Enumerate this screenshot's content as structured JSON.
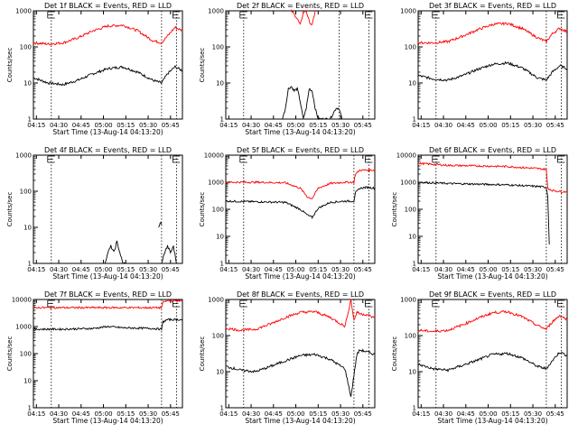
{
  "chart_data": [
    {
      "type": "line",
      "title": "Det 1f BLACK = Events, RED = LLD",
      "xlabel": "Start Time (13-Aug-14 04:13:20)",
      "ylabel": "Counts/sec",
      "ylog": true,
      "ylim": [
        1,
        1000
      ],
      "y_ticks": [
        "1",
        "10",
        "100",
        "1000"
      ],
      "x_ticks": [
        "04:15",
        "04:30",
        "04:45",
        "05:00",
        "05:15",
        "05:30",
        "05:45"
      ],
      "xlim_minutes": [
        0,
        100
      ],
      "markers_minutes": [
        12,
        86,
        96
      ],
      "series": [
        {
          "color": "#000000",
          "x": [
            0,
            10,
            20,
            30,
            40,
            50,
            60,
            70,
            80,
            86,
            90,
            95,
            100
          ],
          "values": [
            14,
            10,
            9,
            12,
            18,
            25,
            28,
            20,
            12,
            10,
            18,
            28,
            22
          ]
        },
        {
          "color": "#ff0000",
          "x": [
            0,
            10,
            20,
            30,
            40,
            50,
            60,
            70,
            80,
            86,
            90,
            95,
            100
          ],
          "values": [
            130,
            120,
            130,
            180,
            280,
            380,
            400,
            280,
            150,
            130,
            200,
            350,
            280
          ]
        }
      ]
    },
    {
      "type": "line",
      "title": "Det 2f BLACK = Events, RED = LLD",
      "xlabel": "Start Time (13-Aug-14 04:13:20)",
      "ylabel": "Counts/sec",
      "ylog": true,
      "ylim": [
        1,
        1000
      ],
      "y_ticks": [
        "1",
        "10",
        "100",
        "1000"
      ],
      "x_ticks": [
        "04:15",
        "04:30",
        "04:45",
        "05:00",
        "05:15",
        "05:30",
        "05:45"
      ],
      "xlim_minutes": [
        0,
        100
      ],
      "markers_minutes": [
        12,
        76,
        96
      ],
      "series": [
        {
          "color": "#000000",
          "x": [
            38,
            40,
            42,
            44,
            46,
            48,
            50,
            52,
            54,
            56,
            58,
            60,
            62,
            64,
            66,
            70,
            74,
            76,
            78
          ],
          "values": [
            1,
            2,
            7,
            8,
            6,
            7,
            3,
            1,
            2,
            7,
            6,
            2,
            1,
            1,
            1,
            1,
            2,
            2,
            1
          ]
        },
        {
          "color": "#ff0000",
          "x": [
            44,
            46,
            48,
            50,
            52,
            54,
            56,
            58,
            60
          ],
          "values": [
            1000,
            800,
            600,
            400,
            900,
            1000,
            500,
            400,
            1000
          ]
        }
      ]
    },
    {
      "type": "line",
      "title": "Det 3f BLACK = Events, RED = LLD",
      "xlabel": "",
      "ylabel": "",
      "ylog": true,
      "ylim": [
        1,
        1000
      ],
      "y_ticks": [
        "1",
        "10",
        "100",
        "1000"
      ],
      "x_ticks": [
        "04:15",
        "04:30",
        "04:45",
        "05:00",
        "05:15",
        "05:30",
        "05:45"
      ],
      "xlim_minutes": [
        0,
        100
      ],
      "markers_minutes": [
        12,
        86,
        96
      ],
      "series": [
        {
          "color": "#000000",
          "x": [
            0,
            10,
            20,
            30,
            40,
            50,
            60,
            70,
            80,
            86,
            90,
            95,
            100
          ],
          "values": [
            16,
            13,
            12,
            16,
            24,
            33,
            36,
            26,
            14,
            12,
            20,
            30,
            25
          ]
        },
        {
          "color": "#ff0000",
          "x": [
            0,
            10,
            20,
            30,
            40,
            50,
            60,
            70,
            80,
            86,
            90,
            95,
            100
          ],
          "values": [
            130,
            130,
            140,
            200,
            300,
            420,
            450,
            320,
            180,
            140,
            230,
            330,
            260
          ]
        }
      ]
    },
    {
      "type": "line",
      "title": "Det 4f BLACK = Events, RED = LLD",
      "xlabel": "Start Time (13-Aug-14 04:13:20)",
      "ylabel": "Counts/sec",
      "ylog": true,
      "ylim": [
        1,
        1000
      ],
      "y_ticks": [
        "1",
        "10",
        "100",
        "1000"
      ],
      "x_ticks": [
        "04:15",
        "04:30",
        "04:45",
        "05:00",
        "05:15",
        "05:30",
        "05:45"
      ],
      "xlim_minutes": [
        0,
        100
      ],
      "markers_minutes": [
        12,
        86,
        96
      ],
      "series": [
        {
          "color": "#000000",
          "x": [
            48,
            50,
            52,
            54,
            56,
            58,
            60,
            62
          ],
          "values": [
            1,
            2,
            3,
            2,
            4,
            2,
            1,
            1
          ]
        },
        {
          "color": "#000000",
          "x": [
            86,
            88,
            90,
            92,
            94,
            96
          ],
          "values": [
            1,
            2,
            3,
            2,
            3,
            1
          ]
        },
        {
          "color": "#000000",
          "x": [
            84,
            85,
            86
          ],
          "values": [
            10,
            14,
            12
          ]
        }
      ]
    },
    {
      "type": "line",
      "title": "Det 5f BLACK = Events, RED = LLD",
      "xlabel": "Start Time (13-Aug-14 04:13:20)",
      "ylabel": "Counts/sec",
      "ylog": true,
      "ylim": [
        1,
        10000
      ],
      "y_ticks": [
        "1",
        "10",
        "100",
        "1000",
        "10000"
      ],
      "x_ticks": [
        "04:15",
        "04:30",
        "04:45",
        "05:00",
        "05:15",
        "05:30",
        "05:45"
      ],
      "xlim_minutes": [
        0,
        100
      ],
      "markers_minutes": [
        12,
        86,
        96
      ],
      "series": [
        {
          "color": "#000000",
          "x": [
            0,
            20,
            40,
            50,
            55,
            58,
            62,
            70,
            80,
            86,
            87,
            90,
            95,
            100
          ],
          "values": [
            200,
            190,
            180,
            100,
            60,
            50,
            110,
            180,
            200,
            200,
            400,
            600,
            650,
            600
          ]
        },
        {
          "color": "#ff0000",
          "x": [
            0,
            20,
            40,
            50,
            55,
            58,
            62,
            70,
            80,
            86,
            87,
            90,
            95,
            100
          ],
          "values": [
            1000,
            1000,
            950,
            600,
            280,
            250,
            600,
            900,
            1000,
            1000,
            2000,
            2800,
            2800,
            2800
          ]
        }
      ]
    },
    {
      "type": "line",
      "title": "Det 6f BLACK = Events, RED = LLD",
      "xlabel": "Start Time (13-Aug-14 04:13:20)",
      "ylabel": "Counts/sec",
      "ylog": true,
      "ylim": [
        1,
        10000
      ],
      "y_ticks": [
        "1",
        "10",
        "100",
        "1000",
        "10000"
      ],
      "x_ticks": [
        "04:15",
        "04:30",
        "04:45",
        "05:00",
        "05:15",
        "05:30",
        "05:45"
      ],
      "xlim_minutes": [
        0,
        100
      ],
      "markers_minutes": [
        12,
        86,
        96
      ],
      "series": [
        {
          "color": "#000000",
          "x": [
            0,
            20,
            40,
            60,
            80,
            86,
            87,
            88
          ],
          "values": [
            1000,
            900,
            850,
            800,
            700,
            650,
            300,
            5
          ]
        },
        {
          "color": "#ff0000",
          "x": [
            0,
            20,
            40,
            60,
            80,
            86,
            87,
            90,
            95,
            100
          ],
          "values": [
            5000,
            4200,
            4000,
            3800,
            3200,
            3000,
            600,
            500,
            450,
            450
          ]
        }
      ]
    },
    {
      "type": "line",
      "title": "Det 7f BLACK = Events, RED = LLD",
      "xlabel": "Start Time (13-Aug-14 04:13:20)",
      "ylabel": "Counts/sec",
      "ylog": true,
      "ylim": [
        1,
        10000
      ],
      "y_ticks": [
        "1",
        "10",
        "100",
        "1000",
        "10000"
      ],
      "x_ticks": [
        "04:15",
        "04:30",
        "04:45",
        "05:00",
        "05:15",
        "05:30",
        "05:45"
      ],
      "xlim_minutes": [
        0,
        100
      ],
      "markers_minutes": [
        12,
        86,
        96
      ],
      "series": [
        {
          "color": "#000000",
          "x": [
            0,
            20,
            40,
            50,
            60,
            80,
            86,
            87,
            90,
            100
          ],
          "values": [
            800,
            800,
            850,
            1000,
            900,
            850,
            800,
            1500,
            1800,
            1800
          ]
        },
        {
          "color": "#ff0000",
          "x": [
            0,
            20,
            40,
            60,
            80,
            86,
            87,
            90,
            100
          ],
          "values": [
            5000,
            5000,
            5000,
            5000,
            5000,
            5000,
            8000,
            9000,
            9000
          ]
        }
      ]
    },
    {
      "type": "line",
      "title": "Det 8f BLACK = Events, RED = LLD",
      "xlabel": "Start Time (13-Aug-14 04:13:20)",
      "ylabel": "Counts/sec",
      "ylog": true,
      "ylim": [
        1,
        1000
      ],
      "y_ticks": [
        "1",
        "10",
        "100",
        "1000"
      ],
      "x_ticks": [
        "04:15",
        "04:30",
        "04:45",
        "05:00",
        "05:15",
        "05:30",
        "05:45"
      ],
      "xlim_minutes": [
        0,
        100
      ],
      "markers_minutes": [
        12,
        86,
        96
      ],
      "series": [
        {
          "color": "#000000",
          "x": [
            0,
            10,
            20,
            30,
            40,
            50,
            60,
            70,
            80,
            84,
            86,
            88,
            90,
            95,
            100
          ],
          "values": [
            14,
            11,
            10,
            14,
            20,
            28,
            30,
            22,
            12,
            2,
            8,
            30,
            40,
            35,
            30
          ]
        },
        {
          "color": "#ff0000",
          "x": [
            0,
            10,
            20,
            30,
            40,
            50,
            60,
            70,
            80,
            84,
            86,
            88,
            90,
            95,
            100
          ],
          "values": [
            160,
            140,
            150,
            210,
            320,
            440,
            460,
            320,
            180,
            1000,
            260,
            450,
            400,
            380,
            300
          ]
        }
      ]
    },
    {
      "type": "line",
      "title": "Det 9f BLACK = Events, RED = LLD",
      "xlabel": "Start Time (13-Aug-14 04:13:20)",
      "ylabel": "Counts/sec",
      "ylog": true,
      "ylim": [
        1,
        1000
      ],
      "y_ticks": [
        "1",
        "10",
        "100",
        "1000"
      ],
      "x_ticks": [
        "04:15",
        "04:30",
        "04:45",
        "05:00",
        "05:15",
        "05:30",
        "05:45"
      ],
      "xlim_minutes": [
        0,
        100
      ],
      "markers_minutes": [
        12,
        86,
        96
      ],
      "series": [
        {
          "color": "#000000",
          "x": [
            0,
            10,
            20,
            30,
            40,
            50,
            60,
            70,
            80,
            86,
            90,
            95,
            100
          ],
          "values": [
            16,
            12,
            11,
            15,
            21,
            30,
            32,
            24,
            14,
            12,
            20,
            35,
            28
          ]
        },
        {
          "color": "#ff0000",
          "x": [
            0,
            10,
            20,
            30,
            40,
            50,
            60,
            70,
            80,
            86,
            90,
            95,
            100
          ],
          "values": [
            140,
            130,
            140,
            200,
            300,
            430,
            460,
            330,
            190,
            150,
            240,
            360,
            280
          ]
        }
      ]
    }
  ]
}
